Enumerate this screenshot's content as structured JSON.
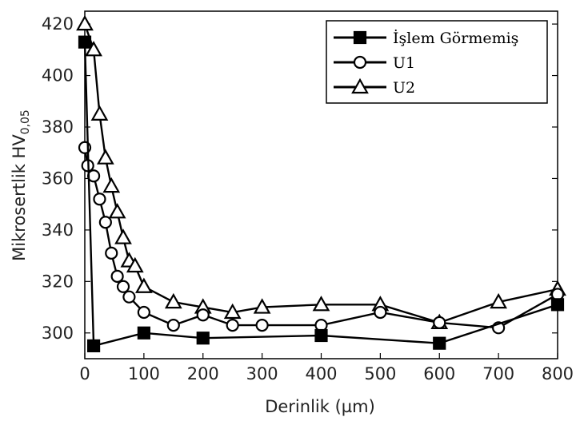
{
  "chart_data": {
    "type": "line",
    "xlabel": "Derinlik (µm)",
    "ylabel": {
      "main": "Mikrosertlik HV",
      "sub": "0,05"
    },
    "xlim": [
      0,
      800
    ],
    "ylim": [
      290,
      425
    ],
    "xticks": [
      "0",
      "100",
      "200",
      "300",
      "400",
      "500",
      "600",
      "700",
      "800"
    ],
    "yticks": [
      "300",
      "320",
      "340",
      "360",
      "380",
      "400",
      "420"
    ],
    "grid": false,
    "legend_position": "top-right",
    "series": [
      {
        "name": "İşlem Görmemiş",
        "marker": "square",
        "x": [
          0,
          15,
          100,
          200,
          400,
          600,
          800
        ],
        "y": [
          413,
          295,
          300,
          298,
          299,
          296,
          311
        ]
      },
      {
        "name": "U1",
        "marker": "circle",
        "x": [
          0,
          5,
          15,
          25,
          35,
          45,
          55,
          65,
          75,
          100,
          150,
          200,
          250,
          300,
          400,
          500,
          600,
          700,
          800
        ],
        "y": [
          372,
          365,
          361,
          352,
          343,
          331,
          322,
          318,
          314,
          308,
          303,
          307,
          303,
          303,
          303,
          308,
          304,
          302,
          315
        ]
      },
      {
        "name": "U2",
        "marker": "triangle",
        "x": [
          0,
          15,
          25,
          35,
          45,
          55,
          65,
          75,
          85,
          100,
          150,
          200,
          250,
          300,
          400,
          500,
          600,
          700,
          800
        ],
        "y": [
          420,
          410,
          385,
          368,
          357,
          347,
          337,
          328,
          326,
          318,
          312,
          310,
          308,
          310,
          311,
          311,
          304,
          312,
          317
        ]
      }
    ]
  }
}
